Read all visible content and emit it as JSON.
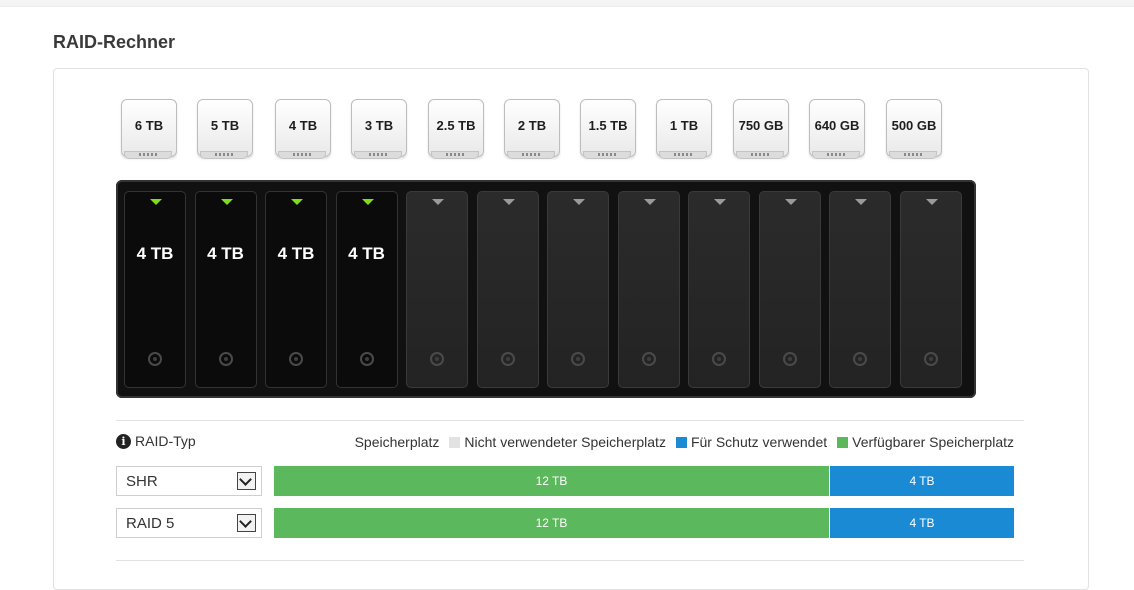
{
  "title": "RAID-Rechner",
  "disk_options": [
    "6 TB",
    "5 TB",
    "4 TB",
    "3 TB",
    "2.5 TB",
    "2 TB",
    "1.5 TB",
    "1 TB",
    "750 GB",
    "640 GB",
    "500 GB"
  ],
  "bays": [
    "4 TB",
    "4 TB",
    "4 TB",
    "4 TB",
    "",
    "",
    "",
    "",
    "",
    "",
    "",
    ""
  ],
  "raid_type_label": "RAID-Typ",
  "legend": {
    "storage_label": "Speicherplatz",
    "unused": "Nicht verwendeter Speicherplatz",
    "protection": "Für Schutz verwendet",
    "available": "Verfügbarer Speicherplatz"
  },
  "colors": {
    "unused": "#e2e2e2",
    "protection": "#1a8ad4",
    "available": "#5cb85c",
    "led_active": "#7dde1c"
  },
  "rows": [
    {
      "raid": "SHR",
      "available": "12 TB",
      "protection": "4 TB",
      "available_fraction": 0.75,
      "protection_fraction": 0.25
    },
    {
      "raid": "RAID 5",
      "available": "12 TB",
      "protection": "4 TB",
      "available_fraction": 0.75,
      "protection_fraction": 0.25
    }
  ]
}
